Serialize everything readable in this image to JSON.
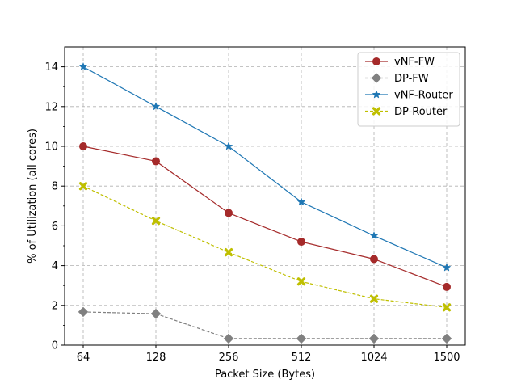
{
  "chart_data": {
    "type": "line",
    "categories": [
      "64",
      "128",
      "256",
      "512",
      "1024",
      "1500"
    ],
    "xlabel": "Packet Size (Bytes)",
    "ylabel": "% of Utilization (all cores)",
    "ylim": [
      0,
      15
    ],
    "yticks": [
      0,
      2,
      4,
      6,
      8,
      10,
      12,
      14
    ],
    "grid": true,
    "legend_position": "top-right",
    "series": [
      {
        "name": "vNF-FW",
        "values": [
          10.0,
          9.25,
          6.65,
          5.2,
          4.33,
          2.93
        ],
        "color": "#a52a2a",
        "marker": "circle",
        "dashed": false
      },
      {
        "name": "DP-FW",
        "values": [
          1.67,
          1.58,
          0.33,
          0.33,
          0.33,
          0.33
        ],
        "color": "#808080",
        "marker": "diamond",
        "dashed": true
      },
      {
        "name": "vNF-Router",
        "values": [
          14.0,
          12.0,
          10.0,
          7.2,
          5.5,
          3.9
        ],
        "color": "#1f77b4",
        "marker": "star",
        "dashed": false
      },
      {
        "name": "DP-Router",
        "values": [
          8.0,
          6.25,
          4.67,
          3.2,
          2.33,
          1.9
        ],
        "color": "#bfbf00",
        "marker": "x",
        "dashed": true
      }
    ]
  }
}
